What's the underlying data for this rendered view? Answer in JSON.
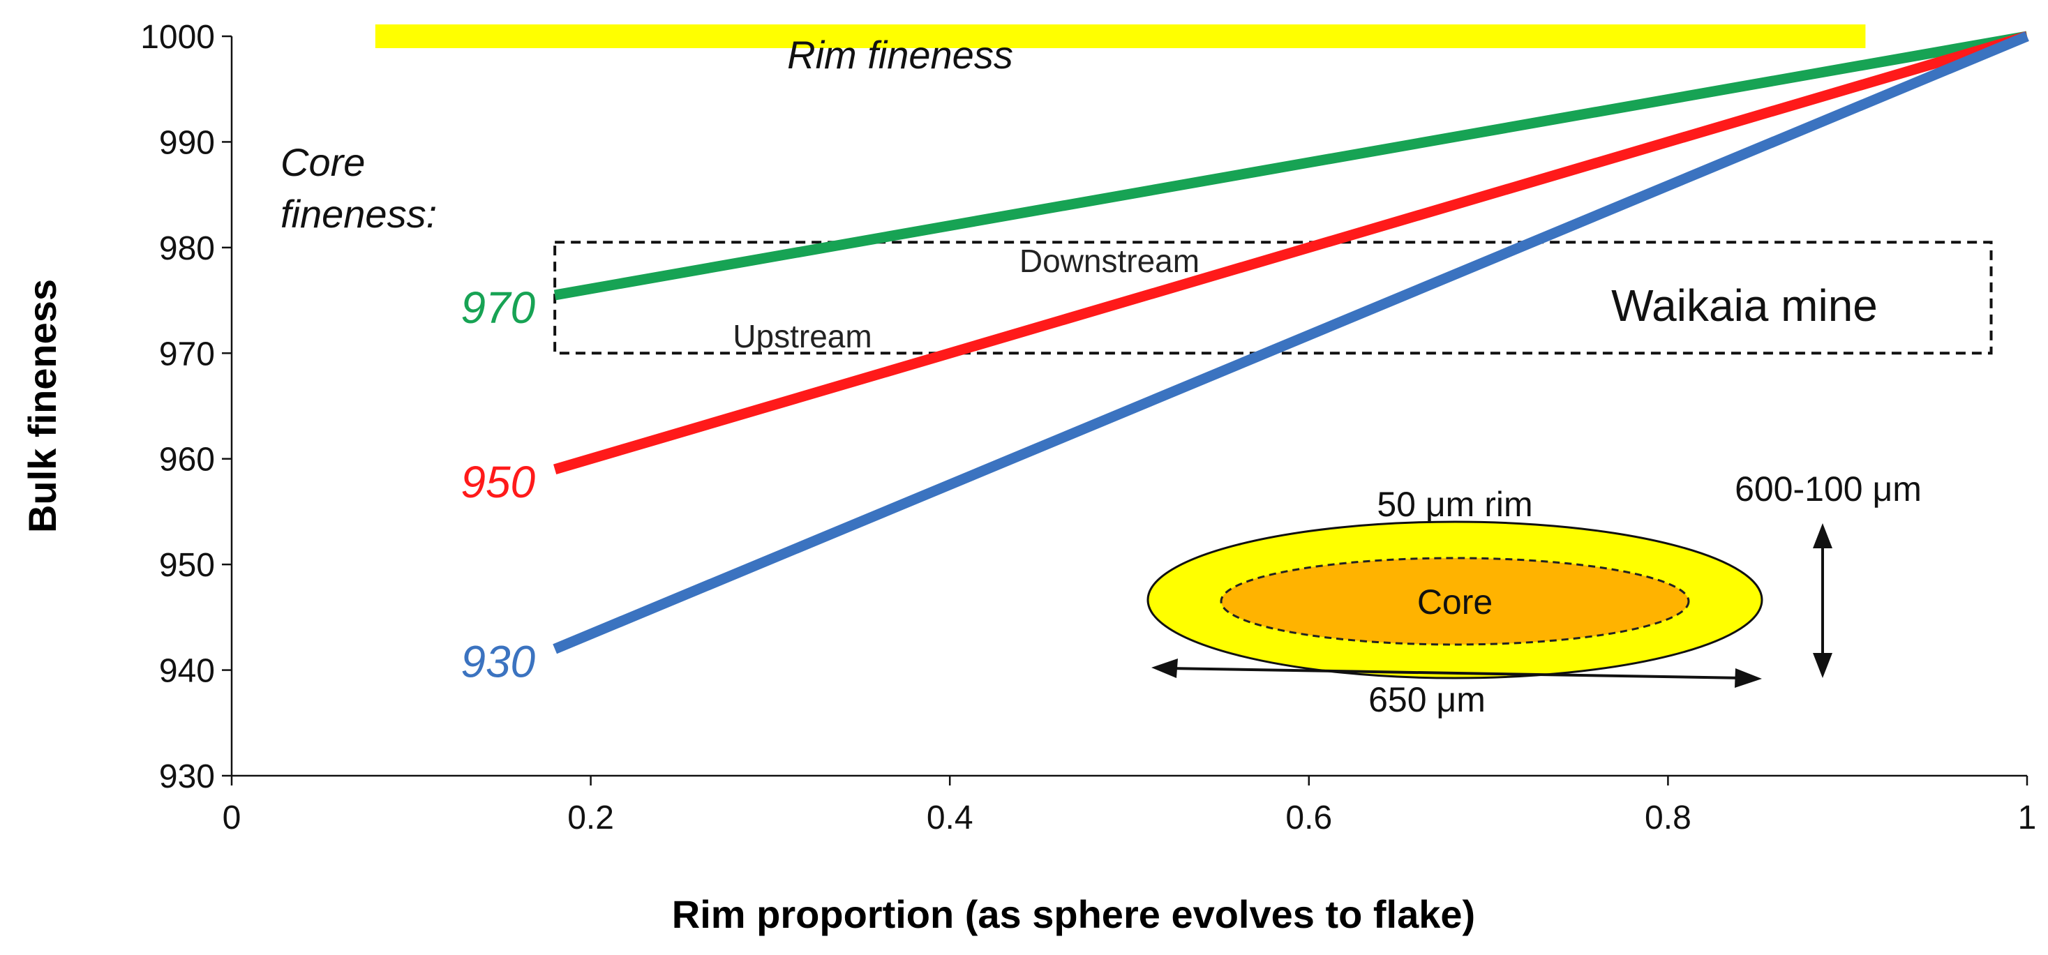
{
  "chart_data": {
    "type": "line",
    "xlabel": "Rim proportion (as sphere evolves to flake)",
    "ylabel": "Bulk fineness",
    "xlim": [
      0,
      1
    ],
    "ylim": [
      930,
      1000
    ],
    "x_ticks": [
      "0",
      "0.2",
      "0.4",
      "0.6",
      "0.8",
      "1"
    ],
    "y_ticks": [
      "930",
      "940",
      "950",
      "960",
      "970",
      "980",
      "990",
      "1000"
    ],
    "grid": false,
    "legend": "none",
    "series": [
      {
        "name": "970",
        "color": "#17a354",
        "x": [
          0.18,
          1.0
        ],
        "y": [
          975.5,
          1000
        ]
      },
      {
        "name": "950",
        "color": "#ff1a1a",
        "x": [
          0.18,
          1.0
        ],
        "y": [
          959,
          1000
        ]
      },
      {
        "name": "930",
        "color": "#3b73c0",
        "x": [
          0.18,
          1.0
        ],
        "y": [
          942,
          1000
        ]
      }
    ],
    "rim_band": {
      "label": "Rim fineness",
      "x": [
        0.08,
        0.91
      ],
      "y": 1000,
      "color": "#ffff00"
    },
    "core_label": "Core fineness:",
    "region": {
      "label": "Waikaia mine",
      "x": [
        0.18,
        0.98
      ],
      "y": [
        970,
        980.5
      ]
    },
    "annotations": {
      "downstream": "Downstream",
      "upstream": "Upstream"
    },
    "inset": {
      "rim_label": "50 μm rim",
      "core_label": "Core",
      "width_label": "650 μm",
      "height_label": "600-100 μm",
      "outer_color": "#ffff00",
      "inner_color": "#ffb300"
    }
  }
}
